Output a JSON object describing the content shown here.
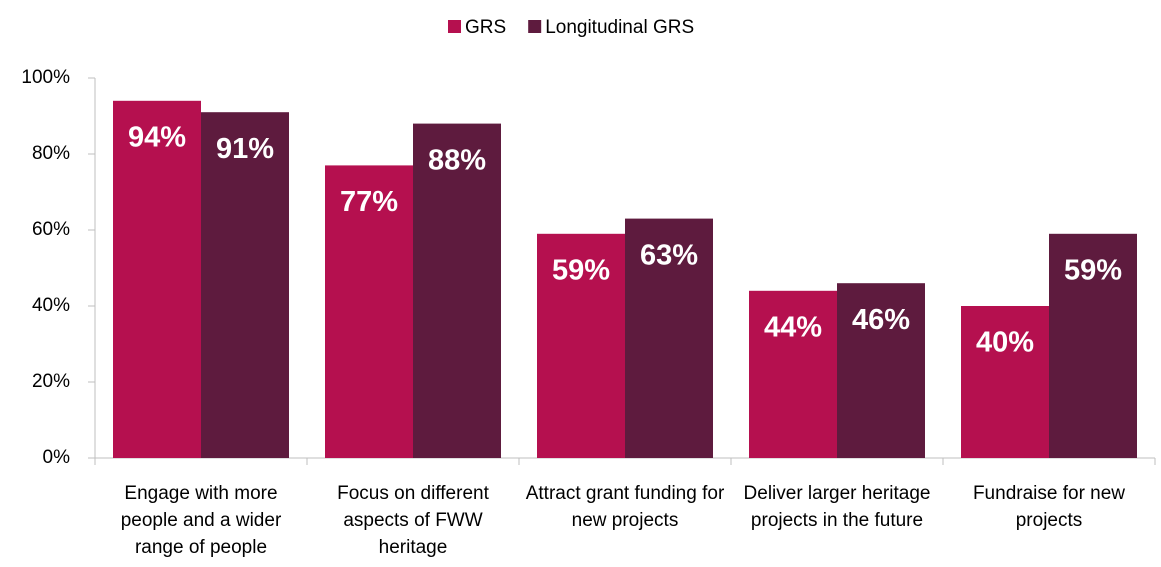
{
  "chart_data": {
    "type": "bar",
    "categories": [
      "Engage with more people and a wider range of people",
      "Focus on different aspects of FWW heritage",
      "Attract grant funding for new projects",
      "Deliver larger heritage projects in the future",
      "Fundraise for new projects"
    ],
    "series": [
      {
        "name": "GRS",
        "color": "#b5104f",
        "values": [
          94,
          77,
          59,
          44,
          40
        ],
        "value_labels": [
          "94%",
          "77%",
          "59%",
          "44%",
          "40%"
        ]
      },
      {
        "name": "Longitudinal GRS",
        "color": "#5e1b3e",
        "values": [
          91,
          88,
          63,
          46,
          59
        ],
        "value_labels": [
          "91%",
          "88%",
          "63%",
          "46%",
          "59%"
        ]
      }
    ],
    "ylim": [
      0,
      100
    ],
    "yticks": [
      {
        "value": 0,
        "label": "0%"
      },
      {
        "value": 20,
        "label": "20%"
      },
      {
        "value": 40,
        "label": "40%"
      },
      {
        "value": 60,
        "label": "60%"
      },
      {
        "value": 80,
        "label": "80%"
      },
      {
        "value": 100,
        "label": "100%"
      }
    ],
    "legend": "top",
    "grid": false
  }
}
